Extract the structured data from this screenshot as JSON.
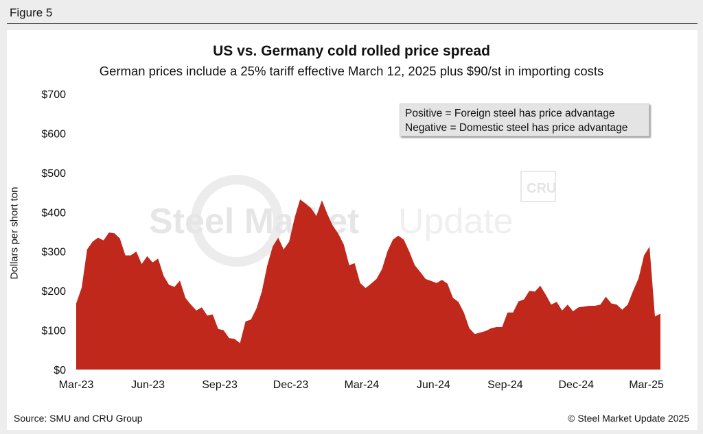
{
  "figure_label": "Figure 5",
  "source_text": "Source: SMU and CRU Group",
  "copyright_text": "© Steel Market Update 2025",
  "legend_lines": [
    "Positive = Foreign steel has price advantage",
    "Negative = Domestic steel has price advantage"
  ],
  "watermark": {
    "main": "Steel Market",
    "light": "Update",
    "badge": "CRU"
  },
  "chart_data": {
    "type": "area",
    "title": "US vs. Germany cold rolled price spread",
    "subtitle": "German prices include a 25% tariff effective March 12, 2025 plus $90/st in importing costs",
    "ylabel": "Dollars per short ton",
    "xlabel": "",
    "ylim": [
      0,
      700
    ],
    "yticks": [
      0,
      100,
      200,
      300,
      400,
      500,
      600,
      700
    ],
    "ytick_labels": [
      "$0",
      "$100",
      "$200",
      "$300",
      "$400",
      "$500",
      "$600",
      "$700"
    ],
    "xtick_labels": [
      "Mar-23",
      "Jun-23",
      "Sep-23",
      "Dec-23",
      "Mar-24",
      "Jun-24",
      "Sep-24",
      "Dec-24",
      "Mar-25"
    ],
    "grid": false,
    "fill_color": "#c0281b",
    "series": [
      {
        "x": [
          "2023-03-01",
          "2023-03-08",
          "2023-03-15",
          "2023-03-22",
          "2023-03-29",
          "2023-04-05",
          "2023-04-12",
          "2023-04-19",
          "2023-04-26",
          "2023-05-03",
          "2023-05-10",
          "2023-05-17",
          "2023-05-24",
          "2023-05-31",
          "2023-06-07",
          "2023-06-14",
          "2023-06-21",
          "2023-06-28",
          "2023-07-05",
          "2023-07-12",
          "2023-07-19",
          "2023-07-26",
          "2023-08-02",
          "2023-08-09",
          "2023-08-16",
          "2023-08-23",
          "2023-08-30",
          "2023-09-06",
          "2023-09-13",
          "2023-09-20",
          "2023-09-27",
          "2023-10-04",
          "2023-10-11",
          "2023-10-18",
          "2023-10-25",
          "2023-11-01",
          "2023-11-08",
          "2023-11-15",
          "2023-11-22",
          "2023-11-29",
          "2023-12-06",
          "2023-12-13",
          "2023-12-20",
          "2023-12-27",
          "2024-01-03",
          "2024-01-10",
          "2024-01-17",
          "2024-01-24",
          "2024-01-31",
          "2024-02-07",
          "2024-02-14",
          "2024-02-21",
          "2024-02-28",
          "2024-03-06",
          "2024-03-13",
          "2024-03-20",
          "2024-03-27",
          "2024-04-03",
          "2024-04-10",
          "2024-04-17",
          "2024-04-24",
          "2024-05-01",
          "2024-05-08",
          "2024-05-15",
          "2024-05-22",
          "2024-05-29",
          "2024-06-05",
          "2024-06-12",
          "2024-06-19",
          "2024-06-26",
          "2024-07-03",
          "2024-07-10",
          "2024-07-17",
          "2024-07-24",
          "2024-07-31",
          "2024-08-07",
          "2024-08-14",
          "2024-08-21",
          "2024-08-28",
          "2024-09-04",
          "2024-09-11",
          "2024-09-18",
          "2024-09-25",
          "2024-10-02",
          "2024-10-09",
          "2024-10-16",
          "2024-10-23",
          "2024-10-30",
          "2024-11-06",
          "2024-11-13",
          "2024-11-20",
          "2024-11-27",
          "2024-12-04",
          "2024-12-11",
          "2024-12-18",
          "2024-12-25",
          "2025-01-01",
          "2025-01-08",
          "2025-01-15",
          "2025-01-22",
          "2025-01-29",
          "2025-02-05",
          "2025-02-12",
          "2025-02-19",
          "2025-02-26",
          "2025-03-05",
          "2025-03-12",
          "2025-03-19"
        ],
        "values": [
          168,
          208,
          305,
          325,
          335,
          328,
          348,
          346,
          333,
          290,
          290,
          300,
          268,
          288,
          272,
          282,
          238,
          215,
          210,
          226,
          182,
          165,
          150,
          158,
          137,
          140,
          103,
          100,
          80,
          78,
          67,
          122,
          127,
          155,
          198,
          265,
          313,
          335,
          305,
          325,
          385,
          432,
          422,
          410,
          390,
          430,
          395,
          365,
          345,
          318,
          265,
          270,
          220,
          207,
          218,
          230,
          255,
          300,
          330,
          340,
          330,
          300,
          265,
          248,
          230,
          225,
          220,
          228,
          218,
          182,
          172,
          145,
          105,
          90,
          94,
          98,
          105,
          108,
          108,
          145,
          145,
          173,
          178,
          200,
          198,
          213,
          190,
          165,
          172,
          150,
          165,
          148,
          158,
          160,
          162,
          162,
          165,
          185,
          168,
          165,
          152,
          165,
          200,
          232,
          290,
          312,
          135,
          142
        ]
      }
    ]
  }
}
